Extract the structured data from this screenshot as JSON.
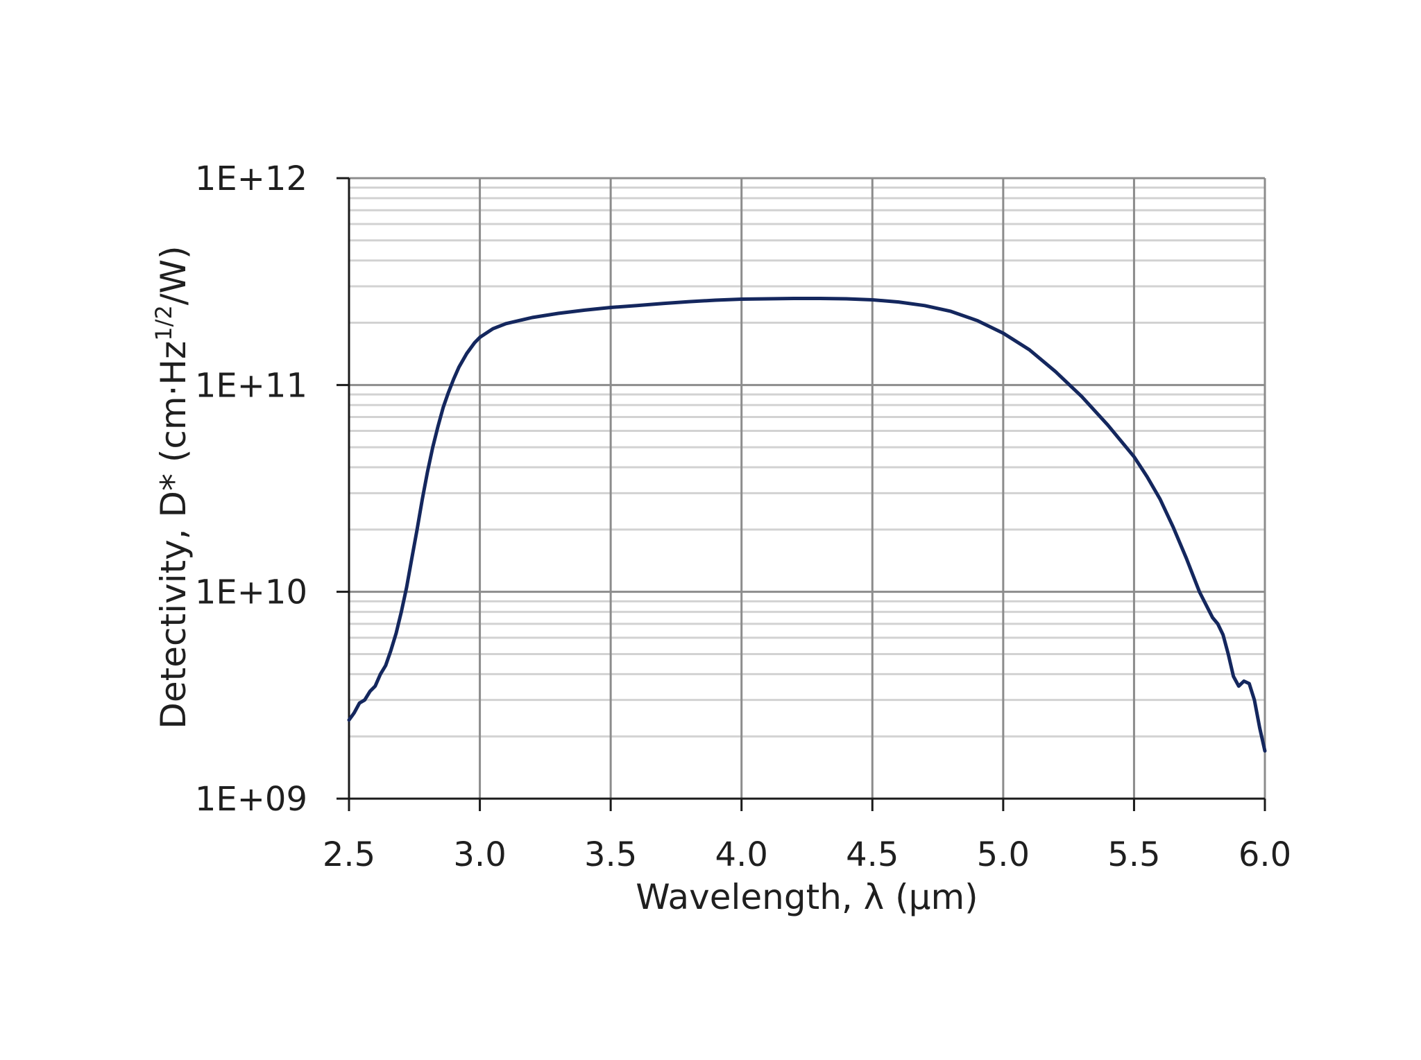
{
  "chart_data": {
    "type": "line",
    "title": "",
    "xlabel": "Wavelength, λ (µm)",
    "ylabel": {
      "prefix": "Detectivity, D* (cm·Hz",
      "superscript": "1/2",
      "suffix": "/W)"
    },
    "xlim": [
      2.5,
      6.0
    ],
    "ylim": [
      1000000000.0,
      1000000000000.0
    ],
    "y_scale": "log",
    "x_ticks": [
      "2.5",
      "3.0",
      "3.5",
      "4.0",
      "4.5",
      "5.0",
      "5.5",
      "6.0"
    ],
    "y_ticks": [
      "1E+09",
      "1E+10",
      "1E+11",
      "1E+12"
    ],
    "grid": true,
    "legend": "none",
    "series": [
      {
        "color": "#14275e",
        "x": [
          2.5,
          2.52,
          2.54,
          2.56,
          2.58,
          2.6,
          2.62,
          2.64,
          2.66,
          2.68,
          2.7,
          2.72,
          2.74,
          2.76,
          2.78,
          2.8,
          2.82,
          2.84,
          2.86,
          2.88,
          2.9,
          2.92,
          2.95,
          2.98,
          3.0,
          3.05,
          3.1,
          3.2,
          3.3,
          3.4,
          3.5,
          3.6,
          3.7,
          3.8,
          3.9,
          4.0,
          4.1,
          4.2,
          4.3,
          4.4,
          4.5,
          4.6,
          4.7,
          4.8,
          4.9,
          5.0,
          5.1,
          5.2,
          5.3,
          5.4,
          5.5,
          5.55,
          5.6,
          5.65,
          5.7,
          5.75,
          5.8,
          5.82,
          5.84,
          5.86,
          5.88,
          5.9,
          5.92,
          5.94,
          5.96,
          5.98,
          6.0
        ],
        "y": [
          2400000000.0,
          2600000000.0,
          2900000000.0,
          3000000000.0,
          3300000000.0,
          3500000000.0,
          4000000000.0,
          4400000000.0,
          5200000000.0,
          6300000000.0,
          8000000000.0,
          10500000000.0,
          14500000000.0,
          20000000000.0,
          28000000000.0,
          38000000000.0,
          50000000000.0,
          63000000000.0,
          78000000000.0,
          92000000000.0,
          107000000000.0,
          122000000000.0,
          142000000000.0,
          160000000000.0,
          170000000000.0,
          187000000000.0,
          198000000000.0,
          212000000000.0,
          222000000000.0,
          230000000000.0,
          237000000000.0,
          242000000000.0,
          248000000000.0,
          253000000000.0,
          257000000000.0,
          260000000000.0,
          261000000000.0,
          262000000000.0,
          262000000000.0,
          261000000000.0,
          258000000000.0,
          252000000000.0,
          242000000000.0,
          227000000000.0,
          205000000000.0,
          178000000000.0,
          148000000000.0,
          116000000000.0,
          88000000000.0,
          64000000000.0,
          45000000000.0,
          36000000000.0,
          28000000000.0,
          20500000000.0,
          14500000000.0,
          10000000000.0,
          7500000000.0,
          7000000000.0,
          6200000000.0,
          5000000000.0,
          3900000000.0,
          3500000000.0,
          3700000000.0,
          3600000000.0,
          3000000000.0,
          2200000000.0,
          1700000000.0
        ]
      }
    ]
  }
}
